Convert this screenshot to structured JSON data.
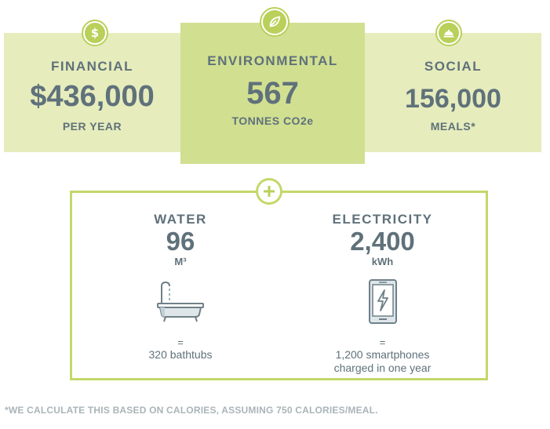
{
  "cards": {
    "financial": {
      "label": "FINANCIAL",
      "value": "$436,000",
      "unit": "PER YEAR",
      "icon": "dollar-icon"
    },
    "environmental": {
      "label": "ENVIRONMENTAL",
      "value": "567",
      "unit": "TONNES CO2e",
      "icon": "leaf-icon"
    },
    "social": {
      "label": "SOCIAL",
      "value": "156,000",
      "unit": "MEALS*",
      "icon": "cloche-icon"
    }
  },
  "panel": {
    "icon": "plus-icon",
    "water": {
      "label": "WATER",
      "value": "96",
      "unit": "M³",
      "icon": "bathtub-icon",
      "eq": "=",
      "equivalent": "320 bathtubs"
    },
    "electricity": {
      "label": "ELECTRICITY",
      "value": "2,400",
      "unit": "kWh",
      "icon": "smartphone-charge-icon",
      "eq": "=",
      "equivalent_line1": "1,200 smartphones",
      "equivalent_line2": "charged in one year"
    }
  },
  "footnote": "*WE CALCULATE THIS BASED ON CALORIES, ASSUMING 750 CALORIES/MEAL.",
  "colors": {
    "accent": "#b9d05a",
    "text": "#5f717a",
    "card_light": "#e6ecbc",
    "card_dark": "#d1df91"
  }
}
